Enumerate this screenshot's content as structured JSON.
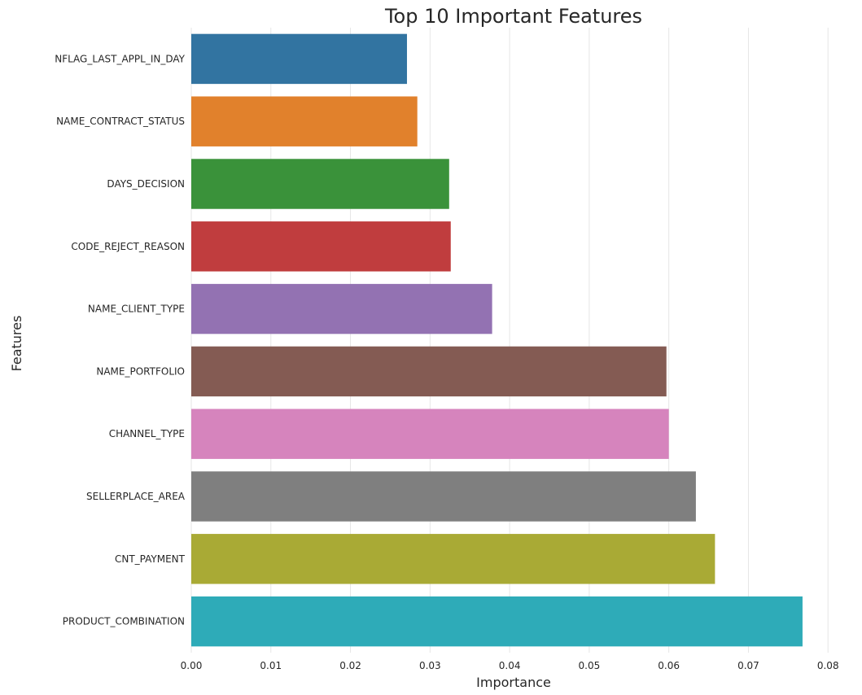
{
  "chart_data": {
    "type": "bar",
    "orientation": "horizontal",
    "title": "Top 10 Important Features",
    "xlabel": "Importance",
    "ylabel": "Features",
    "xlim": [
      0,
      0.081
    ],
    "x_ticks": [
      "0.00",
      "0.01",
      "0.02",
      "0.03",
      "0.04",
      "0.05",
      "0.06",
      "0.07",
      "0.08"
    ],
    "grid": true,
    "categories": [
      "NFLAG_LAST_APPL_IN_DAY",
      "NAME_CONTRACT_STATUS",
      "DAYS_DECISION",
      "CODE_REJECT_REASON",
      "NAME_CLIENT_TYPE",
      "NAME_PORTFOLIO",
      "CHANNEL_TYPE",
      "SELLERPLACE_AREA",
      "CNT_PAYMENT",
      "PRODUCT_COMBINATION"
    ],
    "values": [
      0.0271,
      0.0284,
      0.0324,
      0.0326,
      0.0378,
      0.0597,
      0.06,
      0.0634,
      0.0658,
      0.0768
    ],
    "colors": [
      "#3274a1",
      "#e1812c",
      "#3a923a",
      "#c03d3e",
      "#9372b2",
      "#845b53",
      "#d684bd",
      "#7f7f7f",
      "#a9aa35",
      "#2eabb8"
    ]
  }
}
